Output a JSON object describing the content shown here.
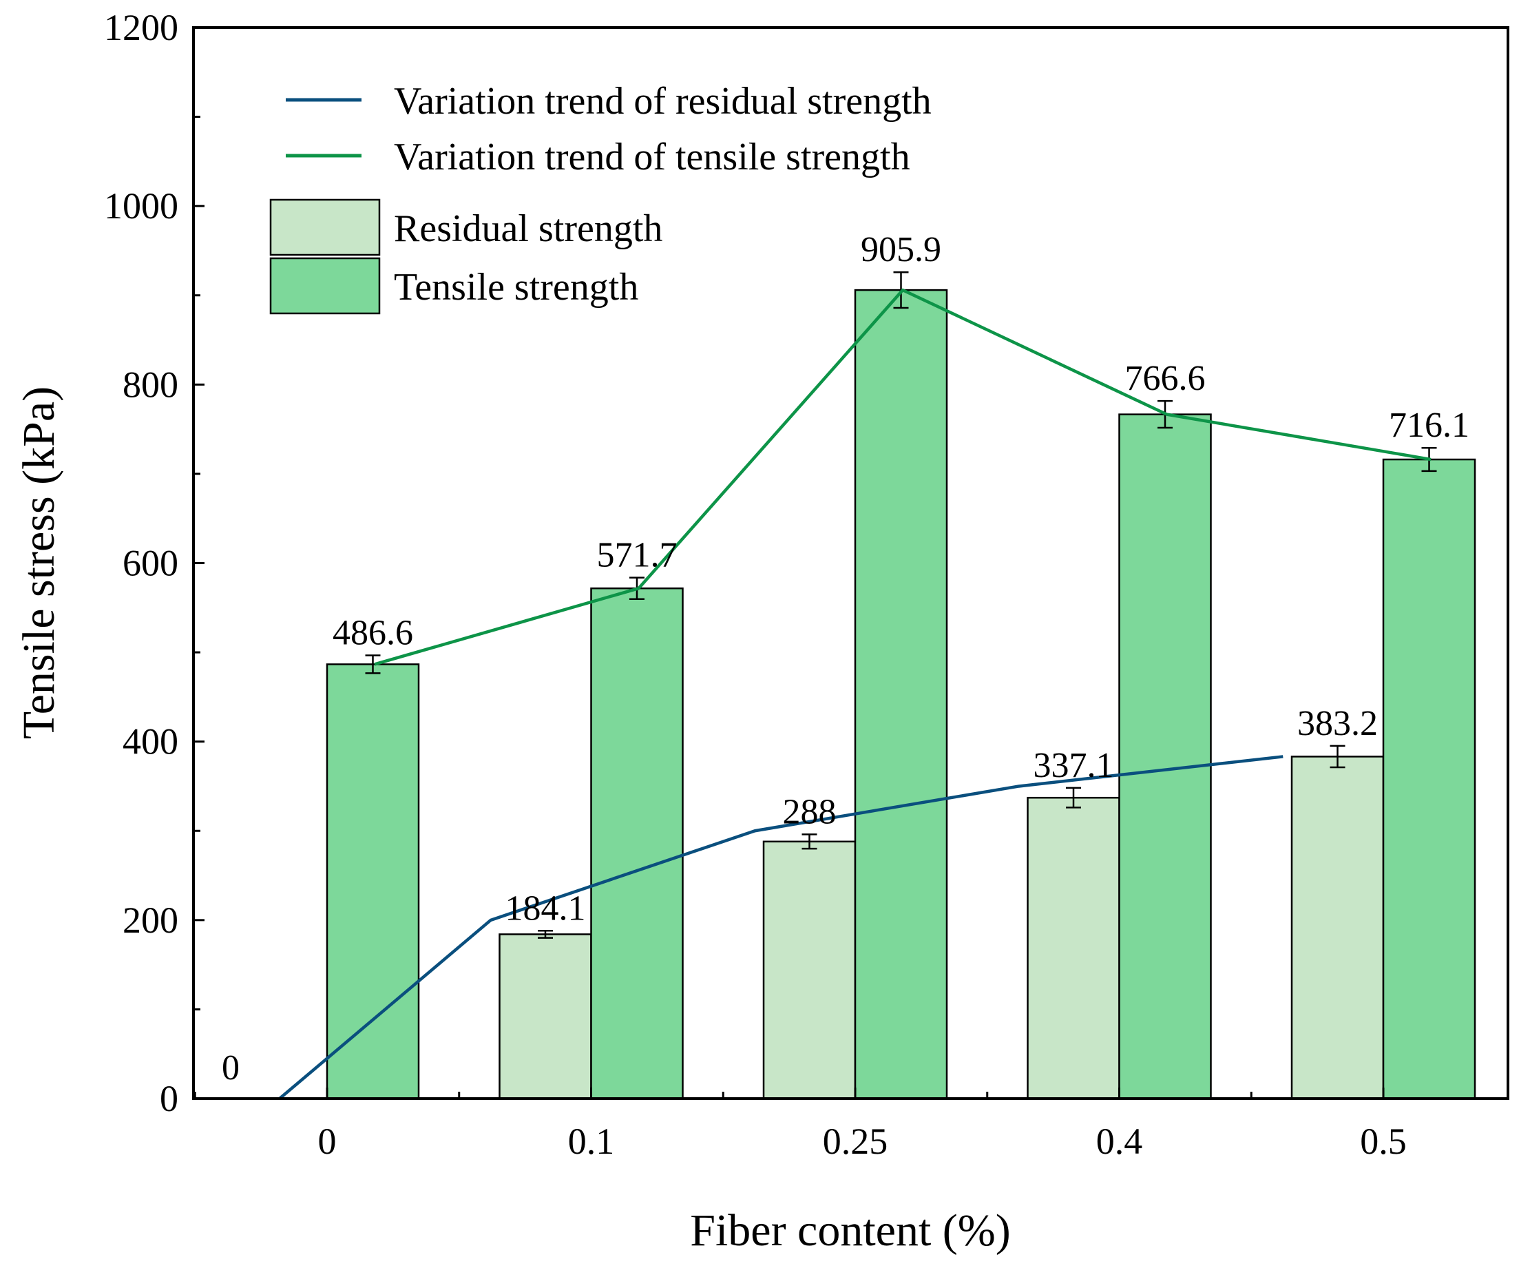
{
  "chart_data": {
    "type": "bar",
    "categories": [
      "0",
      "0.1",
      "0.25",
      "0.4",
      "0.5"
    ],
    "series": [
      {
        "name": "Residual strength",
        "values": [
          0,
          184.1,
          288,
          337.1,
          383.2
        ],
        "labels": [
          "0",
          "184.1",
          "288",
          "337.1",
          "383.2"
        ],
        "errors": [
          0,
          4,
          8,
          11,
          12
        ],
        "color": "#c8e6c8"
      },
      {
        "name": "Tensile strength",
        "values": [
          486.6,
          571.7,
          905.9,
          766.6,
          716.1
        ],
        "labels": [
          "486.6",
          "571.7",
          "905.9",
          "766.6",
          "716.1"
        ],
        "errors": [
          10,
          12,
          20,
          15,
          13
        ],
        "color": "#7dd89a"
      }
    ],
    "trend_lines": [
      {
        "name": "Variation trend of residual strength",
        "color": "#0a4f7e",
        "x": [
          -0.18,
          0.62,
          1.62,
          2.62,
          3.62
        ],
        "y": [
          0,
          200,
          300,
          350,
          383.2
        ]
      },
      {
        "name": "Variation trend of tensile strength",
        "color": "#0d9448",
        "x": [
          0.18,
          1.18,
          2.18,
          3.18,
          4.18
        ],
        "y": [
          486.6,
          571.7,
          905.9,
          766.6,
          716.1
        ]
      }
    ],
    "legend": [
      {
        "label": "Variation trend of residual strength",
        "kind": "line",
        "color": "#0a4f7e"
      },
      {
        "label": "Variation trend of tensile strength",
        "kind": "line",
        "color": "#0d9448"
      },
      {
        "label": "Residual strength",
        "kind": "box",
        "color": "#c8e6c8"
      },
      {
        "label": "Tensile strength",
        "kind": "box",
        "color": "#7dd89a"
      }
    ],
    "legend_position": "top-left",
    "title": "",
    "xlabel": "Fiber content (%)",
    "ylabel": "Tensile stress (kPa)",
    "ylim": [
      0,
      1200
    ],
    "yticks": [
      0,
      200,
      400,
      600,
      800,
      1000,
      1200
    ],
    "ytick_labels": [
      "0",
      "200",
      "400",
      "600",
      "800",
      "1000",
      "1200"
    ],
    "grid": false
  }
}
